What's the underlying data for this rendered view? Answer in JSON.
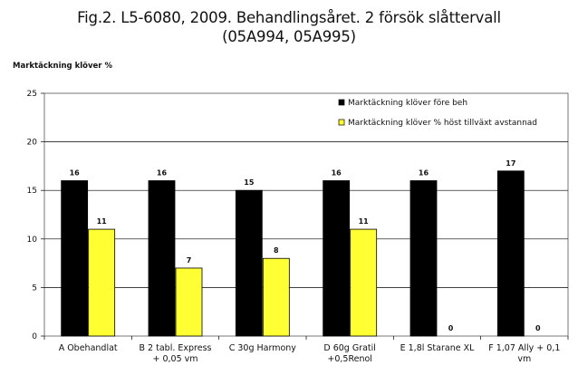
{
  "title_line1": "Fig.2. L5-6080, 2009. Behandlingsåret. 2 försök slåttervall",
  "title_line2": "(05A994, 05A995)",
  "colors": {
    "series1": "#000000",
    "series2": "#ffff33"
  },
  "chart_data": {
    "type": "bar",
    "ylabel": "Marktäckning klöver %",
    "ylim": [
      0,
      25
    ],
    "yticks": [
      0,
      5,
      10,
      15,
      20,
      25
    ],
    "grid": true,
    "legend_position": "top-right",
    "categories": [
      [
        "A Obehandlat"
      ],
      [
        "B 2 tabl. Express",
        "+ 0,05 vm"
      ],
      [
        "C 30g Harmony"
      ],
      [
        "D 60g Gratil",
        "+0,5Renol"
      ],
      [
        "E 1,8l Starane XL"
      ],
      [
        "F 1,07 Ally + 0,1",
        "vm"
      ]
    ],
    "series": [
      {
        "name": "Marktäckning klöver före beh",
        "values": [
          16,
          16,
          15,
          16,
          16,
          17
        ]
      },
      {
        "name": "Marktäckning klöver % höst tillväxt avstannad",
        "values": [
          11,
          7,
          8,
          11,
          0,
          0
        ]
      }
    ]
  }
}
